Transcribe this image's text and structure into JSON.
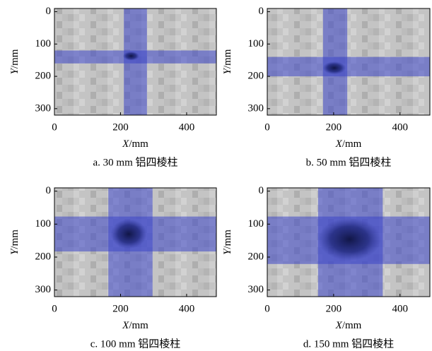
{
  "chart_data": [
    {
      "type": "heatmap",
      "caption": "a. 30 mm 铝四棱柱",
      "x_label_symbol": "X",
      "x_label_unit": "/mm",
      "y_label_symbol": "Y",
      "y_label_unit": "/mm",
      "xlim": [
        0,
        490
      ],
      "ylim": [
        -10,
        320
      ],
      "xticks": [
        0,
        200,
        400
      ],
      "yticks": [
        0,
        100,
        200,
        300
      ],
      "vband": [
        210,
        280
      ],
      "hband": [
        120,
        160
      ],
      "defect": {
        "x": 232,
        "y": 137,
        "rx": 25,
        "ry": 14
      },
      "color": "#3c46c8"
    },
    {
      "type": "heatmap",
      "caption": "b. 50 mm 铝四棱柱",
      "x_label_symbol": "X",
      "x_label_unit": "/mm",
      "y_label_symbol": "Y",
      "y_label_unit": "/mm",
      "xlim": [
        0,
        490
      ],
      "ylim": [
        -10,
        320
      ],
      "xticks": [
        0,
        200,
        400
      ],
      "yticks": [
        0,
        100,
        200,
        300
      ],
      "vband": [
        168,
        241
      ],
      "hband": [
        140,
        200
      ],
      "defect": {
        "x": 202,
        "y": 174,
        "rx": 35,
        "ry": 20
      },
      "color": "#3c46c8"
    },
    {
      "type": "heatmap",
      "caption": "c. 100 mm 铝四棱柱",
      "x_label_symbol": "X",
      "x_label_unit": "/mm",
      "y_label_symbol": "Y",
      "y_label_unit": "/mm",
      "xlim": [
        0,
        490
      ],
      "ylim": [
        -10,
        320
      ],
      "xticks": [
        0,
        200,
        400
      ],
      "yticks": [
        0,
        100,
        200,
        300
      ],
      "vband": [
        163,
        297
      ],
      "hband": [
        77,
        183
      ],
      "defect": {
        "x": 225,
        "y": 130,
        "rx": 55,
        "ry": 45
      },
      "color": "#3c46c8"
    },
    {
      "type": "heatmap",
      "caption": "d. 150 mm 铝四棱柱",
      "x_label_symbol": "X",
      "x_label_unit": "/mm",
      "y_label_symbol": "Y",
      "y_label_unit": "/mm",
      "xlim": [
        0,
        490
      ],
      "ylim": [
        -10,
        320
      ],
      "xticks": [
        0,
        200,
        400
      ],
      "yticks": [
        0,
        100,
        200,
        300
      ],
      "vband": [
        153,
        348
      ],
      "hband": [
        77,
        221
      ],
      "defect": {
        "x": 248,
        "y": 146,
        "rx": 95,
        "ry": 65
      },
      "color": "#3c46c8"
    }
  ]
}
